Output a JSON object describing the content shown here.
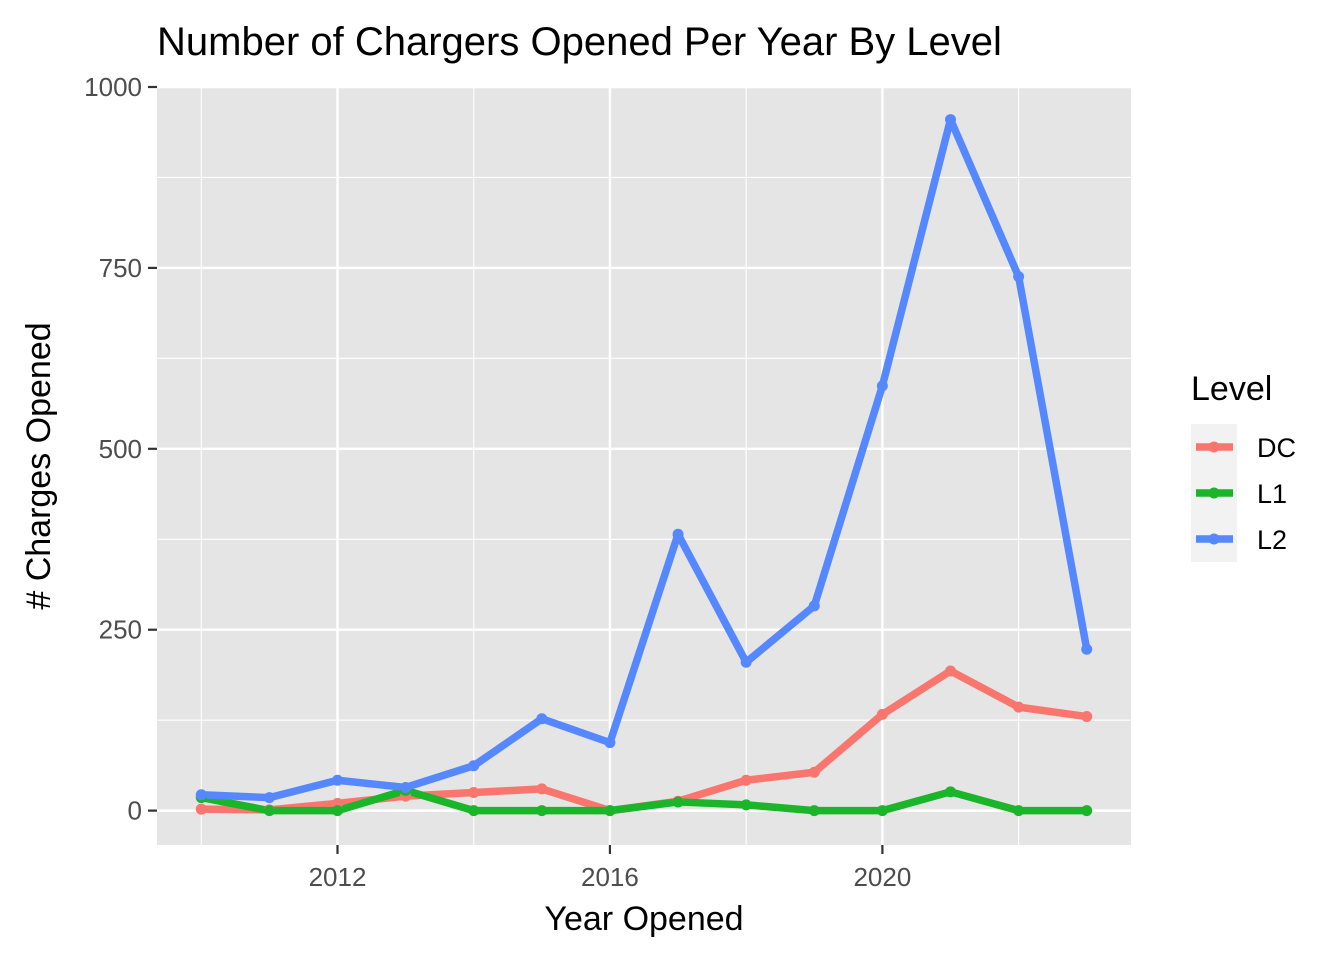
{
  "chart_data": {
    "type": "line",
    "title": "Number of Chargers Opened Per Year By Level",
    "xlabel": "Year Opened",
    "ylabel": "# Charges Opened",
    "x": [
      2010,
      2011,
      2012,
      2013,
      2014,
      2015,
      2016,
      2017,
      2018,
      2019,
      2020,
      2021,
      2022,
      2023
    ],
    "xlim": [
      2009.35,
      2023.65
    ],
    "ylim": [
      -47.5,
      1000
    ],
    "x_ticks": [
      "2012",
      "2016",
      "2020"
    ],
    "y_ticks": [
      "0",
      "250",
      "500",
      "750",
      "1000"
    ],
    "grid": true,
    "legend": {
      "title": "Level",
      "position": "right"
    },
    "series": [
      {
        "name": "DC",
        "color": "#F8766D",
        "values": [
          2,
          1,
          10,
          20,
          25,
          30,
          0,
          13,
          42,
          53,
          133,
          193,
          143,
          130
        ]
      },
      {
        "name": "L1",
        "color": "#1BB52A",
        "values": [
          18,
          0,
          0,
          28,
          0,
          0,
          0,
          12,
          8,
          0,
          0,
          26,
          0,
          0
        ]
      },
      {
        "name": "L2",
        "color": "#5588FF",
        "values": [
          22,
          18,
          42,
          32,
          62,
          127,
          94,
          382,
          205,
          283,
          587,
          955,
          738,
          223
        ]
      }
    ],
    "colors": {
      "panel_background": "#E5E5E5",
      "grid_major": "#FFFFFF",
      "text": "#000000",
      "tick_text": "#4D4D4D"
    }
  }
}
